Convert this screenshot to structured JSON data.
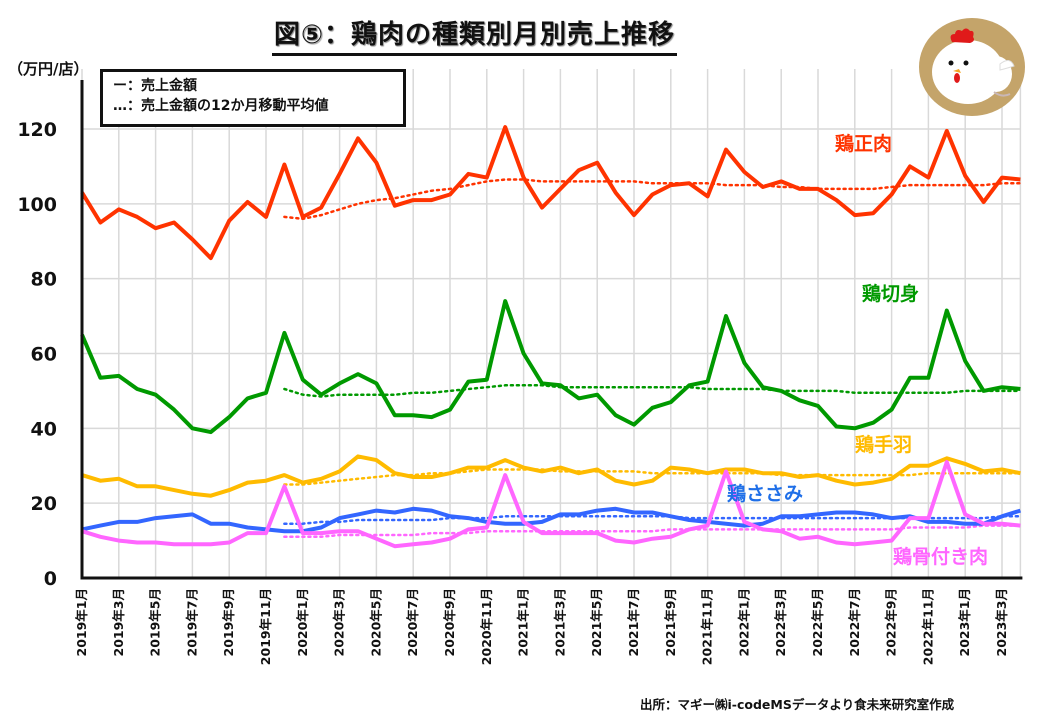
{
  "title": "図⑤：鶏肉の種類別月別売上推移",
  "source_note": "出所：マギー㈱i-codeMSデータより食未来研究室作成",
  "illustration": "chicken-icon",
  "chart_data": {
    "type": "line",
    "title": "図⑤：鶏肉の種類別月別売上推移",
    "ylabel": "（万円/店）",
    "xlabel": "",
    "ylim": [
      0,
      120
    ],
    "yticks": [
      0,
      20,
      40,
      60,
      80,
      100,
      120
    ],
    "grid": true,
    "legend": {
      "placement": "top-left",
      "entries": [
        "ー：売上金額",
        "…：売上金額の12か月移動平均値"
      ]
    },
    "x": [
      "2019年1月",
      "2019年2月",
      "2019年3月",
      "2019年4月",
      "2019年5月",
      "2019年6月",
      "2019年7月",
      "2019年8月",
      "2019年9月",
      "2019年10月",
      "2019年11月",
      "2019年12月",
      "2020年1月",
      "2020年2月",
      "2020年3月",
      "2020年4月",
      "2020年5月",
      "2020年6月",
      "2020年7月",
      "2020年8月",
      "2020年9月",
      "2020年10月",
      "2020年11月",
      "2020年12月",
      "2021年1月",
      "2021年2月",
      "2021年3月",
      "2021年4月",
      "2021年5月",
      "2021年6月",
      "2021年7月",
      "2021年8月",
      "2021年9月",
      "2021年10月",
      "2021年11月",
      "2021年12月",
      "2022年1月",
      "2022年2月",
      "2022年3月",
      "2022年4月",
      "2022年5月",
      "2022年6月",
      "2022年7月",
      "2022年8月",
      "2022年9月",
      "2022年10月",
      "2022年11月",
      "2022年12月",
      "2023年1月",
      "2023年2月",
      "2023年3月",
      "2023年4月"
    ],
    "xtick_labels": [
      "2019年1月",
      "2019年3月",
      "2019年5月",
      "2019年7月",
      "2019年9月",
      "2019年11月",
      "2020年1月",
      "2020年3月",
      "2020年5月",
      "2020年7月",
      "2020年9月",
      "2020年11月",
      "2021年1月",
      "2021年3月",
      "2021年5月",
      "2021年7月",
      "2021年9月",
      "2021年11月",
      "2022年1月",
      "2022年3月",
      "2022年5月",
      "2022年7月",
      "2022年9月",
      "2022年11月",
      "2023年1月",
      "2023年3月"
    ],
    "moving_average_start_index": 11,
    "series": [
      {
        "name": "鶏正肉",
        "color": "#ff3300",
        "values": [
          103,
          95,
          98.5,
          96.5,
          93.5,
          95,
          90.5,
          85.5,
          95.5,
          100.5,
          96.5,
          110.5,
          96.5,
          99,
          108,
          117.5,
          111,
          99.5,
          101,
          101,
          102.5,
          108,
          107,
          120.5,
          107,
          99,
          104,
          109,
          111,
          103,
          97,
          102.5,
          105,
          105.5,
          102,
          114.5,
          108.5,
          104.5,
          106,
          104,
          104,
          101,
          97,
          97.5,
          102.5,
          110,
          107,
          119.5,
          107.5,
          100.5,
          107,
          106.5
        ],
        "moving_average": [
          96.5,
          96,
          97,
          98.5,
          100,
          101,
          101.5,
          102.5,
          103.5,
          104,
          105,
          106,
          106.5,
          106.5,
          106,
          106,
          106,
          106,
          106,
          106,
          105.5,
          105.5,
          105.5,
          105.5,
          105,
          105,
          105,
          104.5,
          104.5,
          104,
          104,
          104,
          104,
          104.5,
          105,
          105,
          105,
          105,
          105,
          105.5,
          105.5
        ]
      },
      {
        "name": "鶏切身",
        "color": "#009900",
        "values": [
          65,
          53.5,
          54,
          50.5,
          49,
          45,
          40,
          39,
          43,
          48,
          49.5,
          65.5,
          53,
          49,
          52,
          54.5,
          52,
          43.5,
          43.5,
          43,
          45,
          52.5,
          53,
          74,
          60,
          52,
          51.5,
          48,
          49,
          43.5,
          41,
          45.5,
          47,
          51.5,
          52.5,
          70,
          57.5,
          51,
          50,
          47.5,
          46,
          40.5,
          40,
          41.5,
          45,
          53.5,
          53.5,
          71.5,
          58,
          50,
          51,
          50.5
        ],
        "moving_average": [
          50.5,
          49,
          48.5,
          49,
          49,
          49,
          49,
          49.5,
          49.5,
          50,
          50.5,
          51,
          51.5,
          51.5,
          51.5,
          51,
          51,
          51,
          51,
          51,
          51,
          51,
          51,
          50.5,
          50.5,
          50.5,
          50.5,
          50,
          50,
          50,
          50,
          49.5,
          49.5,
          49.5,
          49.5,
          49.5,
          49.5,
          50,
          50,
          50,
          50
        ]
      },
      {
        "name": "鶏手羽",
        "color": "#ffbb00",
        "values": [
          27.5,
          26,
          26.5,
          24.5,
          24.5,
          23.5,
          22.5,
          22,
          23.5,
          25.5,
          26,
          27.5,
          25.5,
          26.5,
          28.5,
          32.5,
          31.5,
          28,
          27,
          27,
          28,
          29.5,
          29.5,
          31.5,
          29.5,
          28.5,
          29.5,
          28,
          29,
          26,
          25,
          26,
          29.5,
          29,
          28,
          29,
          29,
          28,
          28,
          27,
          27.5,
          26,
          25,
          25.5,
          26.5,
          30,
          30,
          32,
          30.5,
          28.5,
          29,
          28
        ],
        "moving_average": [
          25,
          25,
          25.5,
          26,
          26.5,
          27,
          27.5,
          27.5,
          28,
          28,
          28.5,
          29,
          29,
          29,
          29,
          28.5,
          28.5,
          28.5,
          28.5,
          28.5,
          28,
          28,
          28,
          28,
          28,
          28,
          28,
          27.5,
          27.5,
          27.5,
          27.5,
          27.5,
          27.5,
          27.5,
          27.5,
          28,
          28,
          28,
          28,
          28,
          28
        ]
      },
      {
        "name": "鶏ささみ",
        "color": "#3366ff",
        "values": [
          13,
          14,
          15,
          15,
          16,
          16.5,
          17,
          14.5,
          14.5,
          13.5,
          13,
          12.5,
          12.5,
          13.5,
          16,
          17,
          18,
          17.5,
          18.5,
          18,
          16.5,
          16,
          15,
          14.5,
          14.5,
          15,
          17,
          17,
          18,
          18.5,
          17.5,
          17.5,
          16.5,
          15.5,
          15,
          14.5,
          14,
          14.5,
          16.5,
          16.5,
          17,
          17.5,
          17.5,
          17,
          16,
          16.5,
          15,
          15,
          14.5,
          14.5,
          16.5,
          18
        ],
        "moving_average": [
          14.5,
          14.5,
          15,
          15,
          15.5,
          15.5,
          15.5,
          15.5,
          15.5,
          16,
          16,
          16,
          16.5,
          16.5,
          16.5,
          16.5,
          16.5,
          16.5,
          16.5,
          16.5,
          16.5,
          16.5,
          16,
          16,
          16,
          16,
          16,
          16,
          16,
          16,
          16,
          16,
          16,
          16,
          16,
          16,
          16,
          16,
          16,
          16.5,
          16.5
        ]
      },
      {
        "name": "鶏骨付き肉",
        "color": "#ff66ff",
        "values": [
          12.5,
          11,
          10,
          9.5,
          9.5,
          9,
          9,
          9,
          9.5,
          12,
          12,
          24.5,
          12,
          12,
          12.5,
          12.5,
          10.5,
          8.5,
          9,
          9.5,
          10.5,
          13,
          13.5,
          27.5,
          15,
          12,
          12,
          12,
          12,
          10,
          9.5,
          10.5,
          11,
          13,
          14,
          28.5,
          15,
          13,
          12.5,
          10.5,
          11,
          9.5,
          9,
          9.5,
          10,
          16,
          16,
          31,
          17,
          14.5,
          14.5,
          14
        ],
        "moving_average": [
          11,
          11,
          11,
          11.5,
          11.5,
          11.5,
          11.5,
          11.5,
          12,
          12,
          12,
          12.5,
          12.5,
          12.5,
          12.5,
          12.5,
          12.5,
          12.5,
          12.5,
          12.5,
          12.5,
          13,
          13,
          13,
          13,
          13,
          13,
          13,
          13,
          13,
          13,
          13,
          13,
          13,
          13.5,
          13.5,
          13.5,
          13.5,
          14,
          14,
          14
        ]
      }
    ],
    "series_label_colors": {
      "鶏正肉": "#ff3300",
      "鶏切身": "#009900",
      "鶏手羽": "#ffbb00",
      "鶏ささみ": "#1f6fe8",
      "鶏骨付き肉": "#ff66ff"
    }
  }
}
